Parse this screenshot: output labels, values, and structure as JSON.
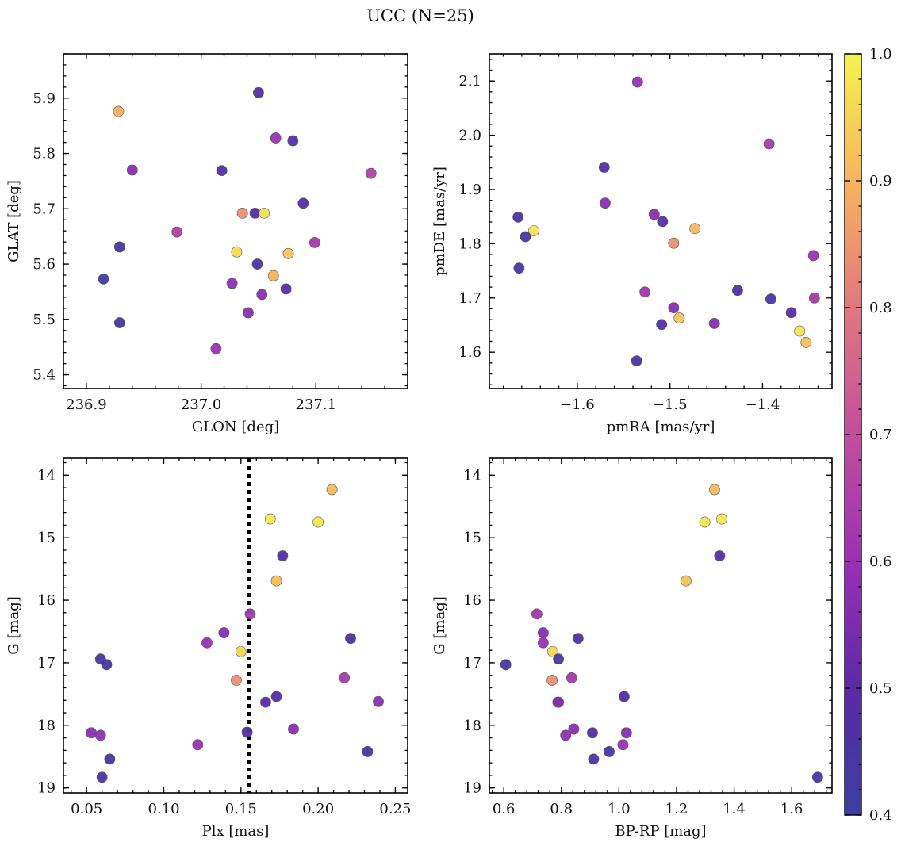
{
  "title": "UCC (N=25)",
  "colorbar": {
    "min": 0.4,
    "max": 1.0,
    "tick_labels": [
      "0.4",
      "0.5",
      "0.6",
      "0.7",
      "0.8",
      "0.9",
      "1.0"
    ],
    "colormap": "plasma"
  },
  "chart_data": [
    {
      "type": "scatter",
      "id": "glon-glat",
      "xlabel": "GLON [deg]",
      "ylabel": "GLAT [deg]",
      "xlim": [
        236.88,
        237.18
      ],
      "ylim": [
        5.375,
        5.98
      ],
      "xticks": [
        236.9,
        237.0,
        237.1
      ],
      "xtick_labels": [
        "236.9",
        "237.0",
        "237.1"
      ],
      "yticks": [
        5.4,
        5.5,
        5.6,
        5.7,
        5.8,
        5.9
      ],
      "ytick_labels": [
        "5.4",
        "5.5",
        "5.6",
        "5.7",
        "5.8",
        "5.9"
      ],
      "points": [
        {
          "x": 236.928,
          "y": 5.876,
          "c": 0.89
        },
        {
          "x": 237.05,
          "y": 5.91,
          "c": 0.47
        },
        {
          "x": 237.065,
          "y": 5.828,
          "c": 0.6
        },
        {
          "x": 237.08,
          "y": 5.823,
          "c": 0.48
        },
        {
          "x": 236.94,
          "y": 5.77,
          "c": 0.57
        },
        {
          "x": 237.018,
          "y": 5.769,
          "c": 0.47
        },
        {
          "x": 237.148,
          "y": 5.764,
          "c": 0.66
        },
        {
          "x": 237.089,
          "y": 5.71,
          "c": 0.47
        },
        {
          "x": 237.036,
          "y": 5.692,
          "c": 0.84
        },
        {
          "x": 237.047,
          "y": 5.692,
          "c": 0.48
        },
        {
          "x": 237.055,
          "y": 5.692,
          "c": 0.97
        },
        {
          "x": 236.979,
          "y": 5.658,
          "c": 0.65
        },
        {
          "x": 237.099,
          "y": 5.639,
          "c": 0.63
        },
        {
          "x": 236.929,
          "y": 5.631,
          "c": 0.44
        },
        {
          "x": 237.031,
          "y": 5.622,
          "c": 0.96
        },
        {
          "x": 237.076,
          "y": 5.619,
          "c": 0.93
        },
        {
          "x": 237.049,
          "y": 5.6,
          "c": 0.45
        },
        {
          "x": 237.063,
          "y": 5.579,
          "c": 0.9
        },
        {
          "x": 236.915,
          "y": 5.573,
          "c": 0.42
        },
        {
          "x": 237.027,
          "y": 5.565,
          "c": 0.58
        },
        {
          "x": 237.074,
          "y": 5.555,
          "c": 0.5
        },
        {
          "x": 237.053,
          "y": 5.545,
          "c": 0.57
        },
        {
          "x": 237.041,
          "y": 5.512,
          "c": 0.57
        },
        {
          "x": 236.929,
          "y": 5.494,
          "c": 0.45
        },
        {
          "x": 237.013,
          "y": 5.447,
          "c": 0.6
        }
      ]
    },
    {
      "type": "scatter",
      "id": "pmra-pmde",
      "xlabel": "pmRA [mas/yr]",
      "ylabel": "pmDE [mas/yr]",
      "xlim": [
        -1.695,
        -1.325
      ],
      "ylim": [
        1.533,
        2.15
      ],
      "xticks": [
        -1.6,
        -1.5,
        -1.4
      ],
      "xtick_labels": [
        "−1.6",
        "−1.5",
        "−1.4"
      ],
      "yticks": [
        1.6,
        1.7,
        1.8,
        1.9,
        2.0,
        2.1
      ],
      "ytick_labels": [
        "1.6",
        "1.7",
        "1.8",
        "1.9",
        "2.0",
        "2.1"
      ],
      "points": [
        {
          "x": -1.535,
          "y": 2.098,
          "c": 0.6
        },
        {
          "x": -1.393,
          "y": 1.984,
          "c": 0.63
        },
        {
          "x": -1.571,
          "y": 1.941,
          "c": 0.47
        },
        {
          "x": -1.57,
          "y": 1.875,
          "c": 0.57
        },
        {
          "x": -1.517,
          "y": 1.854,
          "c": 0.57
        },
        {
          "x": -1.664,
          "y": 1.849,
          "c": 0.45
        },
        {
          "x": -1.508,
          "y": 1.841,
          "c": 0.48
        },
        {
          "x": -1.473,
          "y": 1.828,
          "c": 0.91
        },
        {
          "x": -1.647,
          "y": 1.824,
          "c": 0.98
        },
        {
          "x": -1.656,
          "y": 1.813,
          "c": 0.45
        },
        {
          "x": -1.496,
          "y": 1.801,
          "c": 0.84
        },
        {
          "x": -1.345,
          "y": 1.778,
          "c": 0.6
        },
        {
          "x": -1.663,
          "y": 1.755,
          "c": 0.44
        },
        {
          "x": -1.427,
          "y": 1.714,
          "c": 0.47
        },
        {
          "x": -1.527,
          "y": 1.711,
          "c": 0.62
        },
        {
          "x": -1.391,
          "y": 1.698,
          "c": 0.45
        },
        {
          "x": -1.344,
          "y": 1.7,
          "c": 0.63
        },
        {
          "x": -1.496,
          "y": 1.682,
          "c": 0.57
        },
        {
          "x": -1.369,
          "y": 1.673,
          "c": 0.5
        },
        {
          "x": -1.49,
          "y": 1.663,
          "c": 0.93
        },
        {
          "x": -1.509,
          "y": 1.651,
          "c": 0.48
        },
        {
          "x": -1.452,
          "y": 1.653,
          "c": 0.57
        },
        {
          "x": -1.36,
          "y": 1.639,
          "c": 0.97
        },
        {
          "x": -1.353,
          "y": 1.618,
          "c": 0.92
        },
        {
          "x": -1.536,
          "y": 1.584,
          "c": 0.45
        }
      ]
    },
    {
      "type": "scatter",
      "id": "plx-g",
      "xlabel": "Plx [mas]",
      "ylabel": "G [mag]",
      "xlim": [
        0.035,
        0.258
      ],
      "ylim": [
        13.73,
        19.08
      ],
      "y_inverted": true,
      "vline": 0.155,
      "xticks": [
        0.05,
        0.1,
        0.15,
        0.2,
        0.25
      ],
      "xtick_labels": [
        "0.05",
        "0.10",
        "0.15",
        "0.20",
        "0.25"
      ],
      "yticks": [
        14,
        15,
        16,
        17,
        18,
        19
      ],
      "ytick_labels": [
        "14",
        "15",
        "16",
        "17",
        "18",
        "19"
      ],
      "points": [
        {
          "x": 0.209,
          "y": 14.23,
          "c": 0.91
        },
        {
          "x": 0.169,
          "y": 14.7,
          "c": 0.98
        },
        {
          "x": 0.2,
          "y": 14.75,
          "c": 0.98
        },
        {
          "x": 0.177,
          "y": 15.29,
          "c": 0.47
        },
        {
          "x": 0.173,
          "y": 15.69,
          "c": 0.92
        },
        {
          "x": 0.156,
          "y": 16.22,
          "c": 0.62
        },
        {
          "x": 0.139,
          "y": 16.52,
          "c": 0.57
        },
        {
          "x": 0.221,
          "y": 16.61,
          "c": 0.47
        },
        {
          "x": 0.128,
          "y": 16.68,
          "c": 0.6
        },
        {
          "x": 0.15,
          "y": 16.82,
          "c": 0.95
        },
        {
          "x": 0.059,
          "y": 16.94,
          "c": 0.44
        },
        {
          "x": 0.063,
          "y": 17.03,
          "c": 0.44
        },
        {
          "x": 0.217,
          "y": 17.24,
          "c": 0.63
        },
        {
          "x": 0.147,
          "y": 17.28,
          "c": 0.84
        },
        {
          "x": 0.173,
          "y": 17.54,
          "c": 0.47
        },
        {
          "x": 0.166,
          "y": 17.63,
          "c": 0.5
        },
        {
          "x": 0.239,
          "y": 17.62,
          "c": 0.57
        },
        {
          "x": 0.184,
          "y": 18.06,
          "c": 0.57
        },
        {
          "x": 0.053,
          "y": 18.12,
          "c": 0.57
        },
        {
          "x": 0.154,
          "y": 18.11,
          "c": 0.47
        },
        {
          "x": 0.059,
          "y": 18.16,
          "c": 0.58
        },
        {
          "x": 0.122,
          "y": 18.31,
          "c": 0.6
        },
        {
          "x": 0.232,
          "y": 18.42,
          "c": 0.45
        },
        {
          "x": 0.065,
          "y": 18.54,
          "c": 0.45
        },
        {
          "x": 0.06,
          "y": 18.83,
          "c": 0.45
        }
      ]
    },
    {
      "type": "scatter",
      "id": "bprp-g",
      "xlabel": "BP-RP [mag]",
      "ylabel": "G [mag]",
      "xlim": [
        0.55,
        1.74
      ],
      "ylim": [
        13.73,
        19.08
      ],
      "y_inverted": true,
      "xticks": [
        0.6,
        0.8,
        1.0,
        1.2,
        1.4,
        1.6
      ],
      "xtick_labels": [
        "0.6",
        "0.8",
        "1.0",
        "1.2",
        "1.4",
        "1.6"
      ],
      "yticks": [
        14,
        15,
        16,
        17,
        18,
        19
      ],
      "ytick_labels": [
        "14",
        "15",
        "16",
        "17",
        "18",
        "19"
      ],
      "points": [
        {
          "x": 1.332,
          "y": 14.23,
          "c": 0.91
        },
        {
          "x": 1.357,
          "y": 14.7,
          "c": 0.98
        },
        {
          "x": 1.298,
          "y": 14.75,
          "c": 0.98
        },
        {
          "x": 1.35,
          "y": 15.29,
          "c": 0.47
        },
        {
          "x": 1.233,
          "y": 15.69,
          "c": 0.92
        },
        {
          "x": 0.715,
          "y": 16.22,
          "c": 0.62
        },
        {
          "x": 0.737,
          "y": 16.52,
          "c": 0.57
        },
        {
          "x": 0.858,
          "y": 16.61,
          "c": 0.47
        },
        {
          "x": 0.737,
          "y": 16.68,
          "c": 0.6
        },
        {
          "x": 0.77,
          "y": 16.82,
          "c": 0.95
        },
        {
          "x": 0.79,
          "y": 16.94,
          "c": 0.44
        },
        {
          "x": 0.607,
          "y": 17.03,
          "c": 0.44
        },
        {
          "x": 0.836,
          "y": 17.24,
          "c": 0.63
        },
        {
          "x": 0.768,
          "y": 17.28,
          "c": 0.84
        },
        {
          "x": 1.018,
          "y": 17.54,
          "c": 0.47
        },
        {
          "x": 0.788,
          "y": 17.63,
          "c": 0.5
        },
        {
          "x": 0.79,
          "y": 17.63,
          "c": 0.57
        },
        {
          "x": 0.843,
          "y": 18.06,
          "c": 0.57
        },
        {
          "x": 0.908,
          "y": 18.12,
          "c": 0.47
        },
        {
          "x": 1.026,
          "y": 18.12,
          "c": 0.57
        },
        {
          "x": 0.815,
          "y": 18.16,
          "c": 0.58
        },
        {
          "x": 1.014,
          "y": 18.31,
          "c": 0.6
        },
        {
          "x": 0.966,
          "y": 18.42,
          "c": 0.45
        },
        {
          "x": 0.912,
          "y": 18.54,
          "c": 0.45
        },
        {
          "x": 1.69,
          "y": 18.83,
          "c": 0.45
        }
      ]
    }
  ]
}
